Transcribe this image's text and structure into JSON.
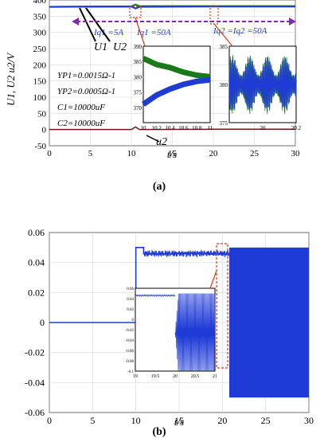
{
  "chart_data": [
    {
      "type": "line",
      "panel_label": "(a)",
      "ylabel": "U1, U2 u2/V",
      "xlabel": "t/s",
      "xlim": [
        0,
        30
      ],
      "ylim": [
        -25,
        400
      ],
      "x_ticks": [
        "0",
        "5",
        "10",
        "15",
        "20",
        "25",
        "30"
      ],
      "y_ticks": [
        "-50",
        "0",
        "50",
        "100",
        "150",
        "200",
        "250",
        "300",
        "350",
        "400"
      ],
      "series": [
        {
          "name": "U1",
          "x": [
            0,
            10,
            10.5,
            11,
            20,
            30
          ],
          "y": [
            379,
            380,
            386,
            381,
            381,
            381
          ],
          "color": "#1a7a1a"
        },
        {
          "name": "U2",
          "x": [
            0,
            10,
            10.5,
            11,
            20,
            30
          ],
          "y": [
            379,
            380,
            374,
            379,
            380,
            380
          ],
          "color": "#1f3bd6"
        },
        {
          "name": "u2",
          "x": [
            0,
            10,
            10.5,
            11,
            20,
            30
          ],
          "y": [
            0,
            0,
            8,
            0,
            1,
            1
          ],
          "color": "#6a1a1a"
        }
      ],
      "annotations": {
        "iq1": "Iq1 =5A",
        "iq1b": "Iq1 =50A",
        "iq2": "Iq2 =Iq2 =50A",
        "params": [
          "YP1=0.0015Ω-1",
          "YP2=0.0005Ω-1",
          "C1=10000uF",
          "C2=10000uF"
        ],
        "u1_label": "U1",
        "u2_label": "U2",
        "u2small_label": "u2"
      },
      "inset1": {
        "xlim": [
          10,
          11
        ],
        "ylim": [
          365,
          390
        ],
        "x_ticks": [
          "10",
          "10.2",
          "10.4",
          "10.6",
          "10.8",
          "11"
        ],
        "y_ticks": [
          "370",
          "375",
          "380",
          "385",
          "390"
        ],
        "series": [
          {
            "name": "U1",
            "x": [
              10,
              10.2,
              10.4,
              10.6,
              10.8,
              11
            ],
            "y": [
              386,
              384,
              383,
              381.5,
              380.5,
              380
            ],
            "color": "#1a7a1a"
          },
          {
            "name": "U2",
            "x": [
              10,
              10.2,
              10.4,
              10.6,
              10.8,
              11
            ],
            "y": [
              371,
              374,
              376,
              377.5,
              378.5,
              379
            ],
            "color": "#1f3bd6"
          }
        ]
      },
      "inset2": {
        "xlim": [
          19.8,
          20.2
        ],
        "ylim": [
          375,
          385
        ],
        "x_ticks": [
          "20",
          "20.2"
        ],
        "y_ticks": [
          "375",
          "380",
          "385"
        ]
      }
    },
    {
      "type": "line",
      "panel_label": "(b)",
      "xlabel": "t/s",
      "xlim": [
        0,
        30
      ],
      "ylim": [
        -0.06,
        0.06
      ],
      "x_ticks": [
        "0",
        "5",
        "10",
        "15",
        "20",
        "25",
        "30"
      ],
      "y_ticks": [
        "-0.06",
        "-0.04",
        "-0.02",
        "0",
        "0.02",
        "0.04",
        "0.06"
      ],
      "series": [
        {
          "name": "",
          "x": [
            0,
            10,
            10,
            11,
            20,
            20.8,
            30
          ],
          "y": [
            0,
            0,
            0.05,
            0.045,
            0.046,
            0.05,
            0.05
          ],
          "color": "#1f3bd6"
        }
      ],
      "oscillation": {
        "x_start": 20.8,
        "x_end": 30,
        "y_low": -0.05,
        "y_high": 0.05
      },
      "inset": {
        "xlim": [
          19,
          21
        ],
        "ylim": [
          -0.1,
          0.06
        ],
        "x_ticks": [
          "19",
          "19.5",
          "20",
          "20.5",
          "21"
        ],
        "y_ticks": [
          "0.06",
          "0.04",
          "0.02",
          "0",
          "-0.02",
          "-0.04",
          "-0.06",
          "-0.08",
          "-0.1"
        ]
      }
    }
  ]
}
